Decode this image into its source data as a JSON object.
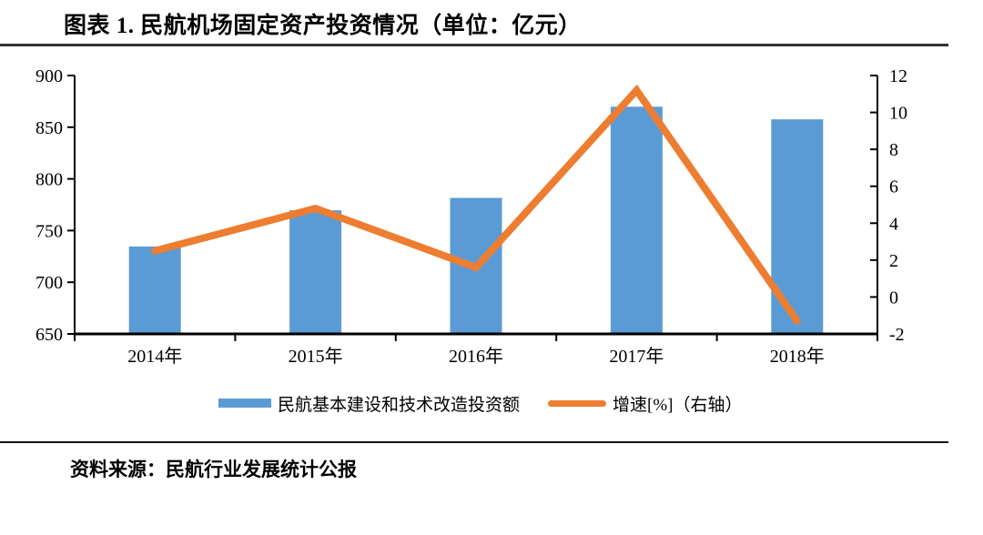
{
  "chart_data": {
    "type": "bar+line combo",
    "title": "图表 1. 民航机场固定资产投资情况（单位：亿元）",
    "categories": [
      "2014年",
      "2015年",
      "2016年",
      "2017年",
      "2018年"
    ],
    "series": [
      {
        "name": "民航基本建设和技术改造投资额",
        "type": "bar",
        "axis": "left",
        "color": "#5B9BD5",
        "values": [
          734.6,
          769.6,
          781.6,
          869.8,
          857.6
        ]
      },
      {
        "name": "增速[%]（右轴）",
        "type": "line",
        "axis": "right",
        "color": "#ED7D31",
        "values": [
          2.5,
          4.8,
          1.6,
          11.2,
          -1.3
        ]
      }
    ],
    "left_axis": {
      "min": 650,
      "max": 900,
      "ticks": [
        650,
        700,
        750,
        800,
        850,
        900
      ]
    },
    "right_axis": {
      "min": -2,
      "max": 12,
      "ticks": [
        -2,
        0,
        2,
        4,
        6,
        8,
        10,
        12
      ]
    },
    "grid": false,
    "legend_position": "bottom"
  },
  "source": {
    "text": "资料来源：民航行业发展统计公报"
  }
}
